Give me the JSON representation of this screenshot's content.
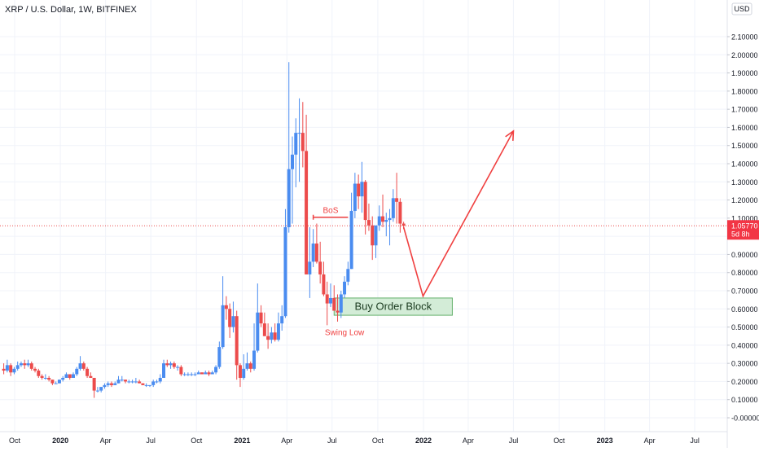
{
  "header": {
    "symbol_line": "XRP / U.S. Dollar, 1W, BITFINEX"
  },
  "colors": {
    "up": "#4a8cf0",
    "down": "#ec4b4b",
    "arrow": "#f04040",
    "grid": "#f0f3fa",
    "axis_text": "#131722",
    "price_line": "#ec4b4b",
    "price_badge": "#f23645",
    "order_block_fill": "#d3ecd7",
    "order_block_border": "#63b06b",
    "order_block_text": "#1a3a1f",
    "bos_text": "#f04040",
    "swing_text": "#f04040"
  },
  "chart_data": {
    "type": "candlestick",
    "title": "XRP / U.S. Dollar, 1W, BITFINEX",
    "currency_label": "USD",
    "y_axis_labels": [
      "2.10000",
      "2.00000",
      "1.90000",
      "1.80000",
      "1.70000",
      "1.60000",
      "1.50000",
      "1.40000",
      "1.30000",
      "1.20000",
      "1.10000",
      "1.00000",
      "0.90000",
      "0.80000",
      "0.70000",
      "0.60000",
      "0.50000",
      "0.40000",
      "0.30000",
      "0.20000",
      "0.10000",
      "-0.00000"
    ],
    "y_axis_values": [
      2.1,
      2.0,
      1.9,
      1.8,
      1.7,
      1.6,
      1.5,
      1.4,
      1.3,
      1.2,
      1.1,
      1.0,
      0.9,
      0.8,
      0.7,
      0.6,
      0.5,
      0.4,
      0.3,
      0.2,
      0.1,
      0.0
    ],
    "ylim": [
      -0.05,
      2.2
    ],
    "x_axis_labels": [
      "Oct",
      "2020",
      "Apr",
      "Jul",
      "Oct",
      "2021",
      "Apr",
      "Jul",
      "Oct",
      "2022",
      "Apr",
      "Jul",
      "Oct",
      "2023",
      "Apr",
      "Jul"
    ],
    "x_axis_dates": [
      "2019-10-01",
      "2020-01-01",
      "2020-04-01",
      "2020-07-01",
      "2020-10-01",
      "2021-01-01",
      "2021-04-01",
      "2021-07-01",
      "2021-10-01",
      "2022-01-01",
      "2022-04-01",
      "2022-07-01",
      "2022-10-01",
      "2023-01-01",
      "2023-04-01",
      "2023-07-01"
    ],
    "xlim": [
      "2019-09-08",
      "2023-08-01"
    ],
    "current_price": {
      "value": 1.0577,
      "label": "1.05770",
      "countdown": "5d 8h"
    },
    "candles": [
      {
        "d": "2019-09-09",
        "o": 0.27,
        "h": 0.3,
        "l": 0.24,
        "c": 0.26
      },
      {
        "d": "2019-09-16",
        "o": 0.26,
        "h": 0.32,
        "l": 0.25,
        "c": 0.29
      },
      {
        "d": "2019-09-23",
        "o": 0.29,
        "h": 0.3,
        "l": 0.23,
        "c": 0.25
      },
      {
        "d": "2019-09-30",
        "o": 0.25,
        "h": 0.28,
        "l": 0.24,
        "c": 0.27
      },
      {
        "d": "2019-10-07",
        "o": 0.27,
        "h": 0.31,
        "l": 0.26,
        "c": 0.29
      },
      {
        "d": "2019-10-14",
        "o": 0.29,
        "h": 0.31,
        "l": 0.28,
        "c": 0.3
      },
      {
        "d": "2019-10-21",
        "o": 0.3,
        "h": 0.32,
        "l": 0.27,
        "c": 0.29
      },
      {
        "d": "2019-10-28",
        "o": 0.29,
        "h": 0.32,
        "l": 0.28,
        "c": 0.3
      },
      {
        "d": "2019-11-04",
        "o": 0.3,
        "h": 0.31,
        "l": 0.26,
        "c": 0.27
      },
      {
        "d": "2019-11-11",
        "o": 0.27,
        "h": 0.28,
        "l": 0.25,
        "c": 0.26
      },
      {
        "d": "2019-11-18",
        "o": 0.26,
        "h": 0.27,
        "l": 0.22,
        "c": 0.23
      },
      {
        "d": "2019-11-25",
        "o": 0.23,
        "h": 0.24,
        "l": 0.21,
        "c": 0.22
      },
      {
        "d": "2019-12-02",
        "o": 0.22,
        "h": 0.24,
        "l": 0.21,
        "c": 0.22
      },
      {
        "d": "2019-12-09",
        "o": 0.22,
        "h": 0.23,
        "l": 0.2,
        "c": 0.21
      },
      {
        "d": "2019-12-16",
        "o": 0.21,
        "h": 0.21,
        "l": 0.18,
        "c": 0.19
      },
      {
        "d": "2019-12-23",
        "o": 0.19,
        "h": 0.2,
        "l": 0.19,
        "c": 0.19
      },
      {
        "d": "2019-12-30",
        "o": 0.19,
        "h": 0.21,
        "l": 0.19,
        "c": 0.21
      },
      {
        "d": "2020-01-06",
        "o": 0.21,
        "h": 0.23,
        "l": 0.2,
        "c": 0.22
      },
      {
        "d": "2020-01-13",
        "o": 0.22,
        "h": 0.25,
        "l": 0.22,
        "c": 0.24
      },
      {
        "d": "2020-01-20",
        "o": 0.24,
        "h": 0.24,
        "l": 0.21,
        "c": 0.22
      },
      {
        "d": "2020-01-27",
        "o": 0.22,
        "h": 0.25,
        "l": 0.22,
        "c": 0.24
      },
      {
        "d": "2020-02-03",
        "o": 0.24,
        "h": 0.28,
        "l": 0.23,
        "c": 0.27
      },
      {
        "d": "2020-02-10",
        "o": 0.27,
        "h": 0.34,
        "l": 0.26,
        "c": 0.3
      },
      {
        "d": "2020-02-17",
        "o": 0.3,
        "h": 0.31,
        "l": 0.26,
        "c": 0.27
      },
      {
        "d": "2020-02-24",
        "o": 0.27,
        "h": 0.28,
        "l": 0.22,
        "c": 0.23
      },
      {
        "d": "2020-03-02",
        "o": 0.23,
        "h": 0.25,
        "l": 0.22,
        "c": 0.22
      },
      {
        "d": "2020-03-09",
        "o": 0.22,
        "h": 0.22,
        "l": 0.11,
        "c": 0.15
      },
      {
        "d": "2020-03-16",
        "o": 0.15,
        "h": 0.17,
        "l": 0.14,
        "c": 0.15
      },
      {
        "d": "2020-03-23",
        "o": 0.15,
        "h": 0.17,
        "l": 0.14,
        "c": 0.17
      },
      {
        "d": "2020-03-30",
        "o": 0.17,
        "h": 0.19,
        "l": 0.16,
        "c": 0.18
      },
      {
        "d": "2020-04-06",
        "o": 0.18,
        "h": 0.2,
        "l": 0.17,
        "c": 0.19
      },
      {
        "d": "2020-04-13",
        "o": 0.19,
        "h": 0.2,
        "l": 0.17,
        "c": 0.18
      },
      {
        "d": "2020-04-20",
        "o": 0.18,
        "h": 0.2,
        "l": 0.18,
        "c": 0.19
      },
      {
        "d": "2020-04-27",
        "o": 0.19,
        "h": 0.23,
        "l": 0.19,
        "c": 0.21
      },
      {
        "d": "2020-05-04",
        "o": 0.21,
        "h": 0.23,
        "l": 0.2,
        "c": 0.21
      },
      {
        "d": "2020-05-11",
        "o": 0.21,
        "h": 0.21,
        "l": 0.19,
        "c": 0.2
      },
      {
        "d": "2020-05-18",
        "o": 0.2,
        "h": 0.21,
        "l": 0.19,
        "c": 0.2
      },
      {
        "d": "2020-05-25",
        "o": 0.2,
        "h": 0.21,
        "l": 0.19,
        "c": 0.2
      },
      {
        "d": "2020-06-01",
        "o": 0.2,
        "h": 0.22,
        "l": 0.19,
        "c": 0.2
      },
      {
        "d": "2020-06-08",
        "o": 0.2,
        "h": 0.21,
        "l": 0.19,
        "c": 0.19
      },
      {
        "d": "2020-06-15",
        "o": 0.19,
        "h": 0.19,
        "l": 0.18,
        "c": 0.18
      },
      {
        "d": "2020-06-22",
        "o": 0.18,
        "h": 0.19,
        "l": 0.17,
        "c": 0.18
      },
      {
        "d": "2020-06-29",
        "o": 0.18,
        "h": 0.18,
        "l": 0.17,
        "c": 0.18
      },
      {
        "d": "2020-07-06",
        "o": 0.18,
        "h": 0.21,
        "l": 0.17,
        "c": 0.2
      },
      {
        "d": "2020-07-13",
        "o": 0.2,
        "h": 0.21,
        "l": 0.19,
        "c": 0.2
      },
      {
        "d": "2020-07-20",
        "o": 0.2,
        "h": 0.24,
        "l": 0.19,
        "c": 0.22
      },
      {
        "d": "2020-07-27",
        "o": 0.22,
        "h": 0.32,
        "l": 0.22,
        "c": 0.3
      },
      {
        "d": "2020-08-03",
        "o": 0.3,
        "h": 0.32,
        "l": 0.28,
        "c": 0.29
      },
      {
        "d": "2020-08-10",
        "o": 0.29,
        "h": 0.31,
        "l": 0.27,
        "c": 0.3
      },
      {
        "d": "2020-08-17",
        "o": 0.3,
        "h": 0.31,
        "l": 0.27,
        "c": 0.28
      },
      {
        "d": "2020-08-24",
        "o": 0.28,
        "h": 0.29,
        "l": 0.26,
        "c": 0.28
      },
      {
        "d": "2020-08-31",
        "o": 0.28,
        "h": 0.29,
        "l": 0.23,
        "c": 0.24
      },
      {
        "d": "2020-09-07",
        "o": 0.24,
        "h": 0.25,
        "l": 0.23,
        "c": 0.24
      },
      {
        "d": "2020-09-14",
        "o": 0.24,
        "h": 0.25,
        "l": 0.23,
        "c": 0.24
      },
      {
        "d": "2020-09-21",
        "o": 0.24,
        "h": 0.25,
        "l": 0.23,
        "c": 0.24
      },
      {
        "d": "2020-09-28",
        "o": 0.24,
        "h": 0.25,
        "l": 0.23,
        "c": 0.24
      },
      {
        "d": "2020-10-05",
        "o": 0.24,
        "h": 0.26,
        "l": 0.24,
        "c": 0.25
      },
      {
        "d": "2020-10-12",
        "o": 0.25,
        "h": 0.25,
        "l": 0.24,
        "c": 0.24
      },
      {
        "d": "2020-10-19",
        "o": 0.24,
        "h": 0.26,
        "l": 0.24,
        "c": 0.25
      },
      {
        "d": "2020-10-26",
        "o": 0.25,
        "h": 0.26,
        "l": 0.23,
        "c": 0.24
      },
      {
        "d": "2020-11-02",
        "o": 0.24,
        "h": 0.26,
        "l": 0.24,
        "c": 0.25
      },
      {
        "d": "2020-11-09",
        "o": 0.25,
        "h": 0.29,
        "l": 0.24,
        "c": 0.28
      },
      {
        "d": "2020-11-16",
        "o": 0.28,
        "h": 0.42,
        "l": 0.27,
        "c": 0.39
      },
      {
        "d": "2020-11-23",
        "o": 0.39,
        "h": 0.78,
        "l": 0.38,
        "c": 0.62
      },
      {
        "d": "2020-11-30",
        "o": 0.62,
        "h": 0.67,
        "l": 0.54,
        "c": 0.6
      },
      {
        "d": "2020-12-07",
        "o": 0.6,
        "h": 0.63,
        "l": 0.44,
        "c": 0.5
      },
      {
        "d": "2020-12-14",
        "o": 0.5,
        "h": 0.64,
        "l": 0.47,
        "c": 0.56
      },
      {
        "d": "2020-12-21",
        "o": 0.56,
        "h": 0.59,
        "l": 0.21,
        "c": 0.29
      },
      {
        "d": "2020-12-28",
        "o": 0.29,
        "h": 0.3,
        "l": 0.17,
        "c": 0.22
      },
      {
        "d": "2021-01-04",
        "o": 0.22,
        "h": 0.35,
        "l": 0.21,
        "c": 0.27
      },
      {
        "d": "2021-01-11",
        "o": 0.27,
        "h": 0.36,
        "l": 0.26,
        "c": 0.3
      },
      {
        "d": "2021-01-18",
        "o": 0.3,
        "h": 0.31,
        "l": 0.25,
        "c": 0.27
      },
      {
        "d": "2021-01-25",
        "o": 0.27,
        "h": 0.52,
        "l": 0.26,
        "c": 0.37
      },
      {
        "d": "2021-02-01",
        "o": 0.37,
        "h": 0.74,
        "l": 0.36,
        "c": 0.58
      },
      {
        "d": "2021-02-08",
        "o": 0.58,
        "h": 0.62,
        "l": 0.5,
        "c": 0.52
      },
      {
        "d": "2021-02-15",
        "o": 0.52,
        "h": 0.58,
        "l": 0.45,
        "c": 0.45
      },
      {
        "d": "2021-02-22",
        "o": 0.45,
        "h": 0.52,
        "l": 0.38,
        "c": 0.43
      },
      {
        "d": "2021-03-01",
        "o": 0.43,
        "h": 0.5,
        "l": 0.41,
        "c": 0.47
      },
      {
        "d": "2021-03-08",
        "o": 0.47,
        "h": 0.52,
        "l": 0.42,
        "c": 0.43
      },
      {
        "d": "2021-03-15",
        "o": 0.43,
        "h": 0.58,
        "l": 0.42,
        "c": 0.52
      },
      {
        "d": "2021-03-22",
        "o": 0.52,
        "h": 0.62,
        "l": 0.48,
        "c": 0.56
      },
      {
        "d": "2021-03-29",
        "o": 0.56,
        "h": 1.15,
        "l": 0.55,
        "c": 1.05
      },
      {
        "d": "2021-04-05",
        "o": 1.05,
        "h": 1.96,
        "l": 1.02,
        "c": 1.37
      },
      {
        "d": "2021-04-12",
        "o": 1.37,
        "h": 1.55,
        "l": 1.07,
        "c": 1.45
      },
      {
        "d": "2021-04-19",
        "o": 1.45,
        "h": 1.65,
        "l": 1.27,
        "c": 1.57
      },
      {
        "d": "2021-04-26",
        "o": 1.57,
        "h": 1.76,
        "l": 1.3,
        "c": 1.57
      },
      {
        "d": "2021-05-03",
        "o": 1.57,
        "h": 1.74,
        "l": 1.38,
        "c": 1.47
      },
      {
        "d": "2021-05-10",
        "o": 1.47,
        "h": 1.67,
        "l": 0.79,
        "c": 0.79
      },
      {
        "d": "2021-05-17",
        "o": 0.79,
        "h": 1.05,
        "l": 0.66,
        "c": 0.86
      },
      {
        "d": "2021-05-24",
        "o": 0.86,
        "h": 1.04,
        "l": 0.83,
        "c": 0.96
      },
      {
        "d": "2021-05-31",
        "o": 0.96,
        "h": 1.07,
        "l": 0.85,
        "c": 0.86
      },
      {
        "d": "2021-06-07",
        "o": 0.86,
        "h": 0.97,
        "l": 0.74,
        "c": 0.79
      },
      {
        "d": "2021-06-14",
        "o": 0.79,
        "h": 0.86,
        "l": 0.67,
        "c": 0.68
      },
      {
        "d": "2021-06-21",
        "o": 0.68,
        "h": 0.75,
        "l": 0.51,
        "c": 0.63
      },
      {
        "d": "2021-06-28",
        "o": 0.63,
        "h": 0.74,
        "l": 0.61,
        "c": 0.66
      },
      {
        "d": "2021-07-05",
        "o": 0.66,
        "h": 0.73,
        "l": 0.59,
        "c": 0.59
      },
      {
        "d": "2021-07-12",
        "o": 0.59,
        "h": 0.68,
        "l": 0.53,
        "c": 0.58
      },
      {
        "d": "2021-07-19",
        "o": 0.58,
        "h": 0.7,
        "l": 0.55,
        "c": 0.68
      },
      {
        "d": "2021-07-26",
        "o": 0.68,
        "h": 0.78,
        "l": 0.66,
        "c": 0.75
      },
      {
        "d": "2021-08-02",
        "o": 0.75,
        "h": 0.86,
        "l": 0.73,
        "c": 0.82
      },
      {
        "d": "2021-08-09",
        "o": 0.82,
        "h": 1.24,
        "l": 0.82,
        "c": 1.14
      },
      {
        "d": "2021-08-16",
        "o": 1.14,
        "h": 1.35,
        "l": 1.1,
        "c": 1.29
      },
      {
        "d": "2021-08-23",
        "o": 1.29,
        "h": 1.34,
        "l": 1.15,
        "c": 1.22
      },
      {
        "d": "2021-08-30",
        "o": 1.22,
        "h": 1.41,
        "l": 1.13,
        "c": 1.3
      },
      {
        "d": "2021-09-06",
        "o": 1.3,
        "h": 1.31,
        "l": 1.01,
        "c": 1.09
      },
      {
        "d": "2021-09-13",
        "o": 1.09,
        "h": 1.18,
        "l": 1.03,
        "c": 1.06
      },
      {
        "d": "2021-09-20",
        "o": 1.06,
        "h": 1.11,
        "l": 0.87,
        "c": 0.95
      },
      {
        "d": "2021-09-27",
        "o": 0.95,
        "h": 1.04,
        "l": 0.88,
        "c": 1.06
      },
      {
        "d": "2021-10-04",
        "o": 1.06,
        "h": 1.17,
        "l": 1.03,
        "c": 1.11
      },
      {
        "d": "2021-10-11",
        "o": 1.11,
        "h": 1.23,
        "l": 1.05,
        "c": 1.08
      },
      {
        "d": "2021-10-18",
        "o": 1.08,
        "h": 1.13,
        "l": 1.0,
        "c": 1.09
      },
      {
        "d": "2021-10-25",
        "o": 1.09,
        "h": 1.15,
        "l": 0.95,
        "c": 1.1
      },
      {
        "d": "2021-11-01",
        "o": 1.1,
        "h": 1.26,
        "l": 1.08,
        "c": 1.21
      },
      {
        "d": "2021-11-08",
        "o": 1.21,
        "h": 1.35,
        "l": 1.07,
        "c": 1.19
      },
      {
        "d": "2021-11-15",
        "o": 1.19,
        "h": 1.21,
        "l": 1.02,
        "c": 1.07
      },
      {
        "d": "2021-11-22",
        "o": 1.07,
        "h": 1.08,
        "l": 1.04,
        "c": 1.0577
      }
    ],
    "annotations": {
      "bos": {
        "label": "BoS",
        "y": 1.105,
        "x1": "2021-05-24",
        "x2": "2021-08-02"
      },
      "order_block": {
        "label": "Buy Order Block",
        "y_top": 0.66,
        "y_bottom": 0.565,
        "x1": "2021-07-05",
        "x2": "2022-02-28"
      },
      "swing_low": {
        "label": "Swing Low",
        "y": 0.535,
        "x": "2021-07-12",
        "label_x": "2021-07-26",
        "label_y": 0.455
      },
      "projection": [
        {
          "d": "2021-11-22",
          "v": 1.05
        },
        {
          "d": "2021-12-31",
          "v": 0.67
        },
        {
          "d": "2022-07-01",
          "v": 1.58
        }
      ]
    }
  }
}
